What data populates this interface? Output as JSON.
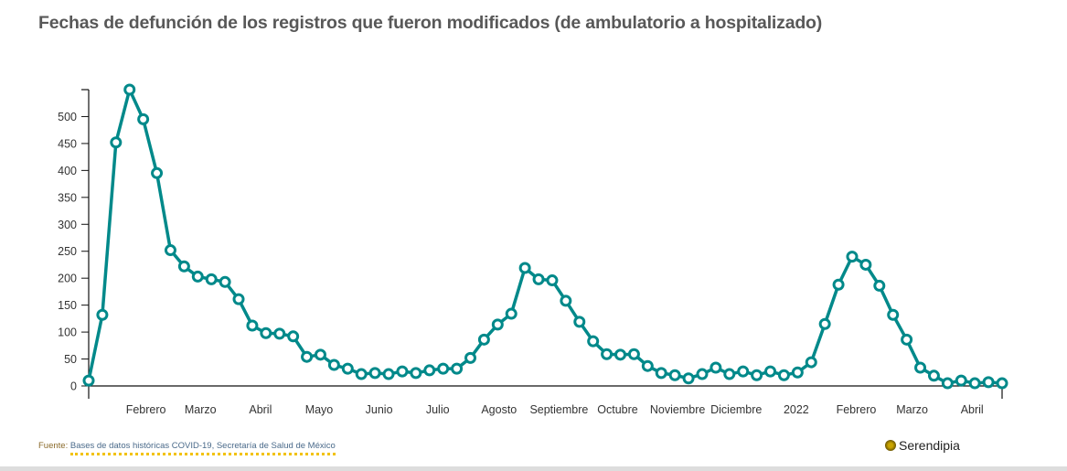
{
  "title": "Fechas de defunción de los registros que fueron modificados (de ambulatorio a hospitalizado)",
  "chart_data": {
    "type": "line",
    "title": "Fechas de defunción de los registros que fueron modificados (de ambulatorio a hospitalizado)",
    "xlabel": "",
    "ylabel": "",
    "ylim": [
      0,
      550
    ],
    "yticks": [
      0,
      50,
      100,
      150,
      200,
      250,
      300,
      350,
      400,
      450,
      500
    ],
    "grid": false,
    "line_color": "#00898a",
    "x": [
      1,
      2,
      3,
      4,
      5,
      6,
      7,
      8,
      9,
      10,
      11,
      12,
      13,
      14,
      15,
      16,
      17,
      18,
      19,
      20,
      21,
      22,
      23,
      24,
      25,
      26,
      27,
      28,
      29,
      30,
      31,
      32,
      33,
      34,
      35,
      36,
      37,
      38,
      39,
      40,
      41,
      42,
      43,
      44,
      45,
      46,
      47,
      48,
      49,
      50,
      51,
      52,
      53,
      54,
      55,
      56,
      57,
      58,
      59,
      60,
      61,
      62,
      63,
      64,
      65,
      66,
      67,
      68
    ],
    "values": [
      10,
      132,
      452,
      550,
      495,
      395,
      252,
      222,
      203,
      198,
      193,
      161,
      112,
      98,
      97,
      92,
      54,
      58,
      39,
      32,
      22,
      24,
      22,
      27,
      24,
      29,
      32,
      32,
      52,
      86,
      114,
      134,
      219,
      198,
      196,
      158,
      119,
      83,
      59,
      58,
      59,
      37,
      24,
      20,
      14,
      22,
      34,
      22,
      27,
      20,
      27,
      20,
      25,
      44,
      115,
      188,
      240,
      225,
      186,
      132,
      86,
      34,
      19,
      5,
      10,
      5,
      7,
      5
    ],
    "xticks": [
      {
        "label": "Febrero",
        "pos": 5.2
      },
      {
        "label": "Marzo",
        "pos": 9.2
      },
      {
        "label": "Abril",
        "pos": 13.6
      },
      {
        "label": "Mayo",
        "pos": 17.9
      },
      {
        "label": "Junio",
        "pos": 22.3
      },
      {
        "label": "Julio",
        "pos": 26.6
      },
      {
        "label": "Agosto",
        "pos": 31.1
      },
      {
        "label": "Septiembre",
        "pos": 35.5
      },
      {
        "label": "Octubre",
        "pos": 39.8
      },
      {
        "label": "Noviembre",
        "pos": 44.2
      },
      {
        "label": "Diciembre",
        "pos": 48.5
      },
      {
        "label": "2022",
        "pos": 52.9
      },
      {
        "label": "Febrero",
        "pos": 57.3
      },
      {
        "label": "Marzo",
        "pos": 61.4
      },
      {
        "label": "Abril",
        "pos": 65.8
      }
    ]
  },
  "footer": {
    "source_label": "Fuente:",
    "source_text": "Bases de datos históricas COVID-19, Secretaría de Salud de México",
    "brand": "Serendipia"
  }
}
